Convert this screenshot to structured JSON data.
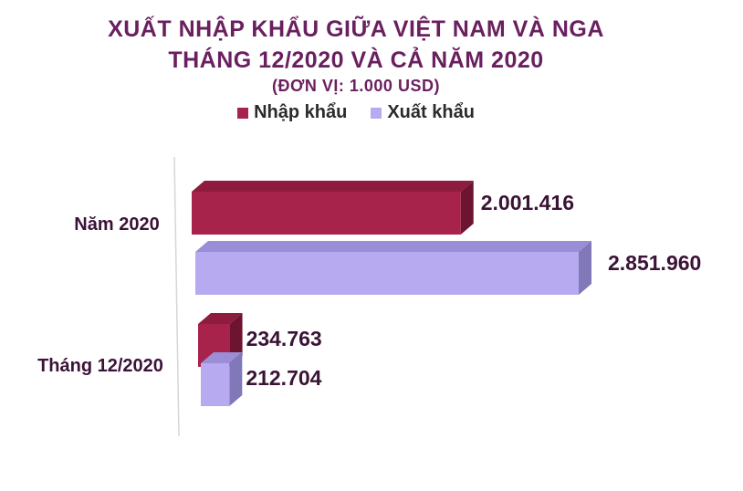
{
  "chart_data": {
    "type": "bar",
    "orientation": "horizontal",
    "title": "XUẤT NHẬP KHẨU GIỮA VIỆT NAM VÀ NGA",
    "subtitle": "THÁNG 12/2020 VÀ CẢ NĂM 2020",
    "unit": "(ĐƠN VỊ: 1.000 USD)",
    "categories": [
      "Năm 2020",
      "Tháng 12/2020"
    ],
    "series": [
      {
        "name": "Nhập khẩu",
        "values": [
          2001416,
          234763
        ],
        "labels": [
          "2.001.416",
          "234.763"
        ],
        "color": "#a8234b",
        "top_color": "#8e1c3e",
        "side_color": "#6d1530"
      },
      {
        "name": "Xuất khẩu",
        "values": [
          2851960,
          212704
        ],
        "labels": [
          "2.851.960",
          "212.704"
        ],
        "color": "#b8aaf0",
        "top_color": "#9a8ed6",
        "side_color": "#8078b9"
      }
    ],
    "legend_position": "top",
    "grid": false
  }
}
